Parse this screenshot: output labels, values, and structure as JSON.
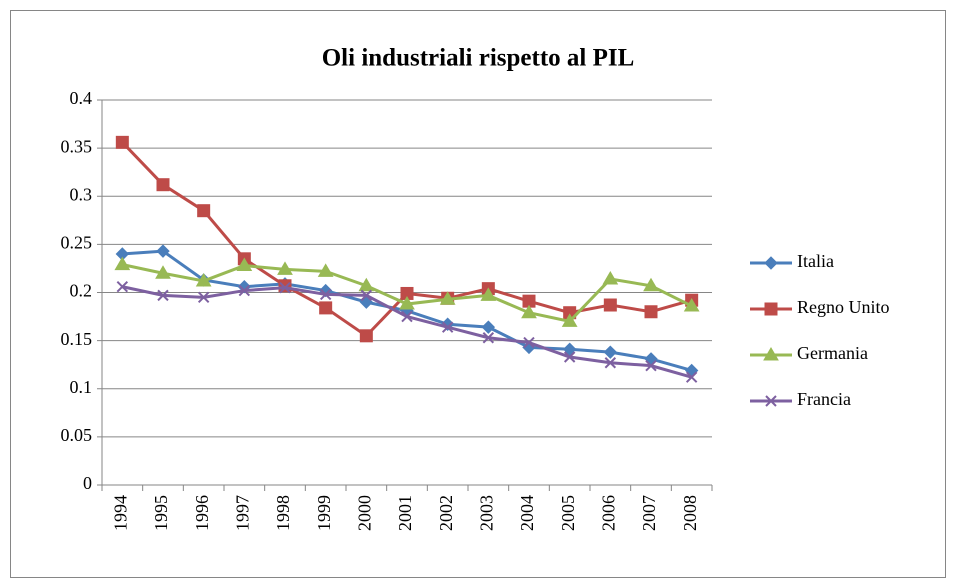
{
  "chart_data": {
    "type": "line",
    "title": "Oli industriali rispetto al PIL",
    "categories": [
      "1994",
      "1995",
      "1996",
      "1997",
      "1998",
      "1999",
      "2000",
      "2001",
      "2002",
      "2003",
      "2004",
      "2005",
      "2006",
      "2007",
      "2008"
    ],
    "series": [
      {
        "name": "Italia",
        "color": "#4a7ebb",
        "marker": "diamond",
        "values": [
          0.24,
          0.243,
          0.213,
          0.206,
          0.209,
          0.202,
          0.19,
          0.181,
          0.167,
          0.164,
          0.143,
          0.141,
          0.138,
          0.131,
          0.119
        ]
      },
      {
        "name": "Regno Unito",
        "color": "#be4b48",
        "marker": "square",
        "values": [
          0.356,
          0.312,
          0.285,
          0.235,
          0.207,
          0.184,
          0.155,
          0.199,
          0.194,
          0.204,
          0.191,
          0.179,
          0.187,
          0.18,
          0.192
        ]
      },
      {
        "name": "Germania",
        "color": "#98b954",
        "marker": "triangle",
        "values": [
          0.229,
          0.22,
          0.212,
          0.228,
          0.224,
          0.222,
          0.207,
          0.188,
          0.193,
          0.197,
          0.179,
          0.17,
          0.214,
          0.207,
          0.186
        ]
      },
      {
        "name": "Francia",
        "color": "#7d60a0",
        "marker": "x",
        "values": [
          0.206,
          0.197,
          0.195,
          0.202,
          0.205,
          0.198,
          0.197,
          0.175,
          0.164,
          0.153,
          0.148,
          0.133,
          0.127,
          0.124,
          0.112
        ]
      }
    ],
    "ylim": [
      0,
      0.4
    ],
    "yticks": [
      0,
      0.05,
      0.1,
      0.15,
      0.2,
      0.25,
      0.3,
      0.35,
      0.4
    ],
    "grid": true,
    "legend": "right"
  }
}
